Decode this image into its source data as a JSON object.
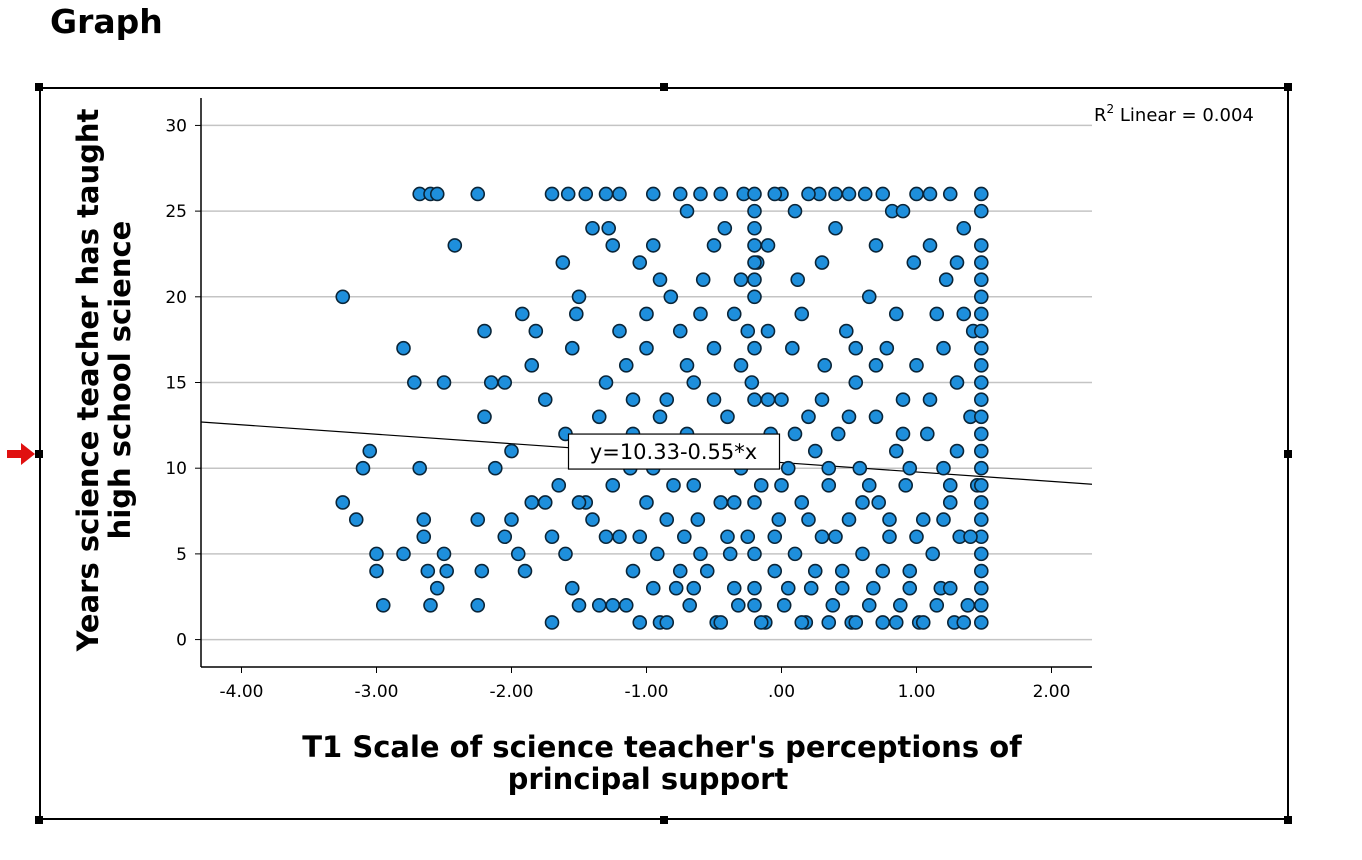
{
  "page": {
    "heading": "Graph"
  },
  "colors": {
    "point_fill": "#1e8fdc",
    "point_stroke": "#0a2538",
    "grid": "#c4c4c4",
    "axis": "#000000",
    "fit_line": "#000000",
    "selection_arrow": "#e01010"
  },
  "icons": {
    "selection": "right-arrow-icon"
  },
  "chart_data": {
    "type": "scatter",
    "title": "",
    "xlabel": "T1 Scale of science teacher's perceptions of principal support",
    "xlabel_lines": [
      "T1 Scale of science teacher's perceptions of",
      "principal support"
    ],
    "ylabel": "Years science teacher has taught high school science",
    "ylabel_lines": [
      "Years science teacher has taught",
      "high school science"
    ],
    "xlim": [
      -4.3,
      2.3
    ],
    "ylim": [
      -1.6,
      31.6
    ],
    "x_ticks": [
      -4,
      -3,
      -2,
      -1,
      0,
      1,
      2
    ],
    "x_tick_labels": [
      "-4.00",
      "-3.00",
      "-2.00",
      "-1.00",
      ".00",
      "1.00",
      "2.00"
    ],
    "y_ticks": [
      0,
      5,
      10,
      15,
      20,
      25,
      30
    ],
    "y_tick_labels": [
      "0",
      "5",
      "10",
      "15",
      "20",
      "25",
      "30"
    ],
    "grid": true,
    "fit": {
      "intercept": 10.33,
      "slope": -0.55,
      "label": "y=10.33-0.55*x",
      "label_at": [
        -0.8,
        11
      ]
    },
    "r2_label": {
      "prefix": "R",
      "superscript": "2",
      "suffix": " Linear = 0.004"
    },
    "points": [
      [
        -3.25,
        20
      ],
      [
        -3.25,
        8
      ],
      [
        -3.15,
        7
      ],
      [
        -3.1,
        10
      ],
      [
        -3.05,
        11
      ],
      [
        -3.0,
        5
      ],
      [
        -3.0,
        4
      ],
      [
        -2.95,
        2
      ],
      [
        -2.8,
        17
      ],
      [
        -2.8,
        5
      ],
      [
        -2.72,
        15
      ],
      [
        -2.68,
        10
      ],
      [
        -2.65,
        7
      ],
      [
        -2.65,
        6
      ],
      [
        -2.62,
        4
      ],
      [
        -2.68,
        26
      ],
      [
        -2.6,
        26
      ],
      [
        -2.55,
        26
      ],
      [
        -2.6,
        2
      ],
      [
        -2.55,
        3
      ],
      [
        -2.5,
        15
      ],
      [
        -2.5,
        5
      ],
      [
        -2.48,
        4
      ],
      [
        -2.42,
        23
      ],
      [
        -2.25,
        26
      ],
      [
        -2.25,
        7
      ],
      [
        -2.22,
        4
      ],
      [
        -2.2,
        13
      ],
      [
        -2.2,
        18
      ],
      [
        -2.15,
        15
      ],
      [
        -2.12,
        10
      ],
      [
        -2.25,
        2
      ],
      [
        -2.05,
        15
      ],
      [
        -2.0,
        11
      ],
      [
        -2.05,
        6
      ],
      [
        -2.0,
        7
      ],
      [
        -1.95,
        5
      ],
      [
        -1.92,
        19
      ],
      [
        -1.85,
        16
      ],
      [
        -1.85,
        8
      ],
      [
        -1.82,
        18
      ],
      [
        -1.9,
        4
      ],
      [
        -1.75,
        14
      ],
      [
        -1.75,
        8
      ],
      [
        -1.7,
        1
      ],
      [
        -1.7,
        6
      ],
      [
        -1.65,
        9
      ],
      [
        -1.6,
        5
      ],
      [
        -1.6,
        12
      ],
      [
        -1.62,
        22
      ],
      [
        -1.58,
        26
      ],
      [
        -1.55,
        17
      ],
      [
        -1.52,
        19
      ],
      [
        -1.5,
        20
      ],
      [
        -1.5,
        2
      ],
      [
        -1.45,
        8
      ],
      [
        -1.42,
        11
      ],
      [
        -1.4,
        7
      ],
      [
        -1.35,
        13
      ],
      [
        -1.3,
        26
      ],
      [
        -1.3,
        15
      ],
      [
        -1.28,
        24
      ],
      [
        -1.25,
        2
      ],
      [
        -1.2,
        6
      ],
      [
        -1.2,
        18
      ],
      [
        -1.15,
        16
      ],
      [
        -1.12,
        10
      ],
      [
        -1.1,
        4
      ],
      [
        -1.1,
        12
      ],
      [
        -1.05,
        1
      ],
      [
        -1.0,
        8
      ],
      [
        -1.0,
        19
      ],
      [
        -0.95,
        26
      ],
      [
        -0.95,
        23
      ],
      [
        -0.92,
        5
      ],
      [
        -0.9,
        1
      ],
      [
        -0.85,
        14
      ],
      [
        -0.82,
        20
      ],
      [
        -0.8,
        9
      ],
      [
        -0.78,
        3
      ],
      [
        -0.75,
        18
      ],
      [
        -0.72,
        6
      ],
      [
        -0.7,
        12
      ],
      [
        -0.68,
        2
      ],
      [
        -0.65,
        15
      ],
      [
        -0.62,
        7
      ],
      [
        -0.6,
        26
      ],
      [
        -0.58,
        21
      ],
      [
        -0.55,
        4
      ],
      [
        -0.55,
        11
      ],
      [
        -0.5,
        17
      ],
      [
        -0.48,
        1
      ],
      [
        -0.45,
        8
      ],
      [
        -0.42,
        24
      ],
      [
        -0.4,
        13
      ],
      [
        -0.38,
        5
      ],
      [
        -0.35,
        19
      ],
      [
        -0.32,
        2
      ],
      [
        -0.3,
        10
      ],
      [
        -0.28,
        26
      ],
      [
        -0.25,
        6
      ],
      [
        -0.22,
        15
      ],
      [
        -0.2,
        3
      ],
      [
        -0.18,
        22
      ],
      [
        -0.15,
        9
      ],
      [
        -0.12,
        1
      ],
      [
        -0.1,
        18
      ],
      [
        -0.08,
        12
      ],
      [
        -0.05,
        4
      ],
      [
        -0.02,
        7
      ],
      [
        0.0,
        26
      ],
      [
        0.0,
        14
      ],
      [
        0.02,
        2
      ],
      [
        0.05,
        10
      ],
      [
        0.08,
        17
      ],
      [
        0.1,
        5
      ],
      [
        0.12,
        21
      ],
      [
        0.15,
        8
      ],
      [
        0.18,
        1
      ],
      [
        0.2,
        13
      ],
      [
        0.22,
        3
      ],
      [
        0.25,
        11
      ],
      [
        0.28,
        26
      ],
      [
        0.3,
        6
      ],
      [
        0.32,
        16
      ],
      [
        0.35,
        9
      ],
      [
        0.38,
        2
      ],
      [
        0.4,
        24
      ],
      [
        0.42,
        12
      ],
      [
        0.45,
        4
      ],
      [
        0.48,
        18
      ],
      [
        0.5,
        7
      ],
      [
        0.52,
        1
      ],
      [
        0.55,
        15
      ],
      [
        0.58,
        10
      ],
      [
        0.6,
        5
      ],
      [
        0.62,
        26
      ],
      [
        0.65,
        20
      ],
      [
        0.68,
        3
      ],
      [
        0.7,
        13
      ],
      [
        0.72,
        8
      ],
      [
        0.75,
        1
      ],
      [
        0.78,
        17
      ],
      [
        0.8,
        6
      ],
      [
        0.82,
        25
      ],
      [
        0.85,
        11
      ],
      [
        0.88,
        2
      ],
      [
        0.9,
        14
      ],
      [
        0.92,
        9
      ],
      [
        0.95,
        4
      ],
      [
        0.98,
        22
      ],
      [
        1.0,
        16
      ],
      [
        1.02,
        1
      ],
      [
        1.05,
        7
      ],
      [
        1.08,
        12
      ],
      [
        1.1,
        26
      ],
      [
        1.12,
        5
      ],
      [
        1.15,
        19
      ],
      [
        1.18,
        3
      ],
      [
        1.2,
        10
      ],
      [
        1.22,
        21
      ],
      [
        1.25,
        8
      ],
      [
        1.28,
        1
      ],
      [
        1.3,
        15
      ],
      [
        1.32,
        6
      ],
      [
        1.35,
        24
      ],
      [
        1.38,
        2
      ],
      [
        1.4,
        13
      ],
      [
        1.42,
        18
      ],
      [
        1.45,
        9
      ],
      [
        1.48,
        26
      ],
      [
        1.48,
        25
      ],
      [
        1.48,
        23
      ],
      [
        1.48,
        22
      ],
      [
        1.48,
        21
      ],
      [
        1.48,
        20
      ],
      [
        1.48,
        19
      ],
      [
        1.48,
        18
      ],
      [
        1.48,
        17
      ],
      [
        1.48,
        16
      ],
      [
        1.48,
        15
      ],
      [
        1.48,
        14
      ],
      [
        1.48,
        13
      ],
      [
        1.48,
        12
      ],
      [
        1.48,
        11
      ],
      [
        1.48,
        10
      ],
      [
        1.48,
        9
      ],
      [
        1.48,
        8
      ],
      [
        1.48,
        7
      ],
      [
        1.48,
        6
      ],
      [
        1.48,
        5
      ],
      [
        1.48,
        4
      ],
      [
        1.48,
        3
      ],
      [
        1.48,
        2
      ],
      [
        1.48,
        1
      ],
      [
        -0.2,
        26
      ],
      [
        -0.2,
        25
      ],
      [
        -0.2,
        24
      ],
      [
        -0.2,
        23
      ],
      [
        -0.2,
        22
      ],
      [
        -0.2,
        21
      ],
      [
        -0.2,
        20
      ],
      [
        -0.2,
        17
      ],
      [
        -0.2,
        14
      ],
      [
        -0.2,
        11
      ],
      [
        -0.2,
        8
      ],
      [
        -0.2,
        5
      ],
      [
        -0.2,
        2
      ],
      [
        -1.55,
        3
      ],
      [
        -1.35,
        2
      ],
      [
        -1.15,
        2
      ],
      [
        -0.95,
        3
      ],
      [
        -0.85,
        1
      ],
      [
        -0.75,
        4
      ],
      [
        -0.65,
        3
      ],
      [
        -0.45,
        1
      ],
      [
        -0.35,
        3
      ],
      [
        -0.15,
        1
      ],
      [
        0.05,
        3
      ],
      [
        0.15,
        1
      ],
      [
        0.25,
        4
      ],
      [
        0.35,
        1
      ],
      [
        0.45,
        3
      ],
      [
        0.55,
        1
      ],
      [
        0.65,
        2
      ],
      [
        0.75,
        4
      ],
      [
        0.85,
        1
      ],
      [
        0.95,
        3
      ],
      [
        1.05,
        1
      ],
      [
        1.15,
        2
      ],
      [
        1.25,
        3
      ],
      [
        1.35,
        1
      ],
      [
        -1.4,
        24
      ],
      [
        -1.25,
        23
      ],
      [
        -1.05,
        22
      ],
      [
        -0.9,
        21
      ],
      [
        -0.7,
        25
      ],
      [
        -0.5,
        23
      ],
      [
        -0.3,
        21
      ],
      [
        -0.1,
        23
      ],
      [
        0.1,
        25
      ],
      [
        0.3,
        22
      ],
      [
        0.5,
        26
      ],
      [
        0.7,
        23
      ],
      [
        0.9,
        25
      ],
      [
        1.1,
        23
      ],
      [
        1.3,
        22
      ],
      [
        -1.1,
        14
      ],
      [
        -0.9,
        13
      ],
      [
        -0.7,
        16
      ],
      [
        -0.5,
        14
      ],
      [
        -0.3,
        16
      ],
      [
        -0.1,
        14
      ],
      [
        0.1,
        12
      ],
      [
        0.3,
        14
      ],
      [
        0.5,
        13
      ],
      [
        0.7,
        16
      ],
      [
        0.9,
        12
      ],
      [
        1.1,
        14
      ],
      [
        1.3,
        11
      ],
      [
        -1.3,
        6
      ],
      [
        -1.05,
        6
      ],
      [
        -0.85,
        7
      ],
      [
        -0.6,
        5
      ],
      [
        -0.4,
        6
      ],
      [
        -0.05,
        6
      ],
      [
        0.2,
        7
      ],
      [
        0.4,
        6
      ],
      [
        0.6,
        8
      ],
      [
        0.8,
        7
      ],
      [
        1.0,
        6
      ],
      [
        1.2,
        7
      ],
      [
        1.4,
        6
      ],
      [
        -1.5,
        8
      ],
      [
        -1.25,
        9
      ],
      [
        -0.95,
        10
      ],
      [
        -0.65,
        9
      ],
      [
        -0.35,
        8
      ],
      [
        0.0,
        9
      ],
      [
        0.35,
        10
      ],
      [
        0.65,
        9
      ],
      [
        0.95,
        10
      ],
      [
        1.25,
        9
      ],
      [
        -1.0,
        17
      ],
      [
        -0.6,
        19
      ],
      [
        -0.25,
        18
      ],
      [
        0.15,
        19
      ],
      [
        0.55,
        17
      ],
      [
        0.85,
        19
      ],
      [
        1.2,
        17
      ],
      [
        1.35,
        19
      ],
      [
        -1.7,
        26
      ],
      [
        -1.45,
        26
      ],
      [
        -1.2,
        26
      ],
      [
        -0.75,
        26
      ],
      [
        -0.45,
        26
      ],
      [
        -0.05,
        26
      ],
      [
        0.2,
        26
      ],
      [
        0.4,
        26
      ],
      [
        0.75,
        26
      ],
      [
        1.0,
        26
      ],
      [
        1.25,
        26
      ]
    ]
  }
}
